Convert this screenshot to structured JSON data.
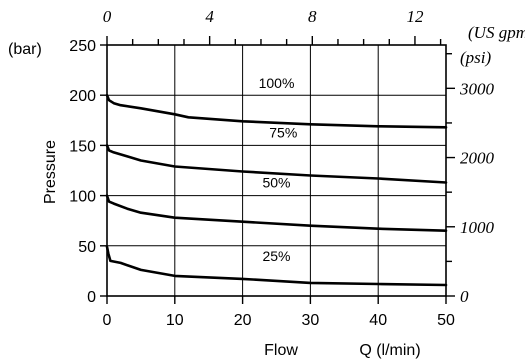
{
  "chart_data": {
    "type": "line",
    "title": "",
    "xlabel": "Flow",
    "xunit": "Q (l/min)",
    "ylabel": "Pressure",
    "yunit": "(bar)",
    "xlim": [
      0,
      50
    ],
    "ylim": [
      0,
      250
    ],
    "x_ticks": [
      0,
      10,
      20,
      30,
      40,
      50
    ],
    "y_ticks": [
      0,
      50,
      100,
      150,
      200,
      250
    ],
    "grid": true,
    "secondary_x": {
      "unit": "(US gpm)",
      "ticks": [
        0,
        4,
        8,
        12
      ],
      "lpm_per_unit": 3.785
    },
    "secondary_y": {
      "unit": "(psi)",
      "ticks": [
        0,
        1000,
        2000,
        3000
      ],
      "bar_per_unit": 0.0689476
    },
    "series": [
      {
        "name": "100%",
        "label_at": [
          25,
          207
        ],
        "points": [
          [
            0,
            200
          ],
          [
            0.3,
            195
          ],
          [
            1,
            192
          ],
          [
            2,
            190
          ],
          [
            5,
            187
          ],
          [
            10,
            181
          ],
          [
            12,
            178
          ],
          [
            20,
            174
          ],
          [
            30,
            171
          ],
          [
            40,
            169
          ],
          [
            50,
            168
          ]
        ]
      },
      {
        "name": "75%",
        "label_at": [
          26,
          158
        ],
        "points": [
          [
            0,
            150
          ],
          [
            0.3,
            145
          ],
          [
            1,
            143
          ],
          [
            3,
            139
          ],
          [
            5,
            135
          ],
          [
            10,
            129
          ],
          [
            20,
            124
          ],
          [
            30,
            120
          ],
          [
            40,
            117
          ],
          [
            50,
            113
          ]
        ]
      },
      {
        "name": "50%",
        "label_at": [
          25,
          108
        ],
        "points": [
          [
            0,
            100
          ],
          [
            0.3,
            94
          ],
          [
            1,
            92
          ],
          [
            3,
            87
          ],
          [
            5,
            83
          ],
          [
            10,
            78
          ],
          [
            20,
            74
          ],
          [
            30,
            70
          ],
          [
            40,
            67
          ],
          [
            50,
            65
          ]
        ]
      },
      {
        "name": "25%",
        "label_at": [
          25,
          35
        ],
        "points": [
          [
            0,
            49
          ],
          [
            0.2,
            42
          ],
          [
            0.5,
            35
          ],
          [
            2,
            33
          ],
          [
            5,
            26
          ],
          [
            10,
            20
          ],
          [
            20,
            17
          ],
          [
            30,
            13
          ],
          [
            40,
            12
          ],
          [
            50,
            11
          ]
        ]
      }
    ]
  }
}
